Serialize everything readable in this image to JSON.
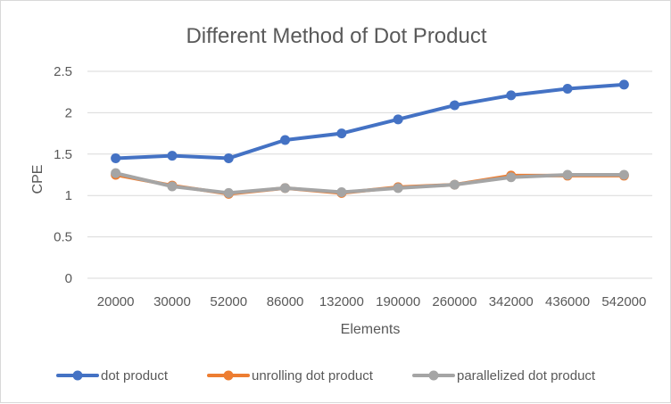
{
  "chart_data": {
    "type": "line",
    "title": "Different Method of Dot Product",
    "xlabel": "Elements",
    "ylabel": "CPE",
    "categories": [
      "20000",
      "30000",
      "52000",
      "86000",
      "132000",
      "190000",
      "260000",
      "342000",
      "436000",
      "542000"
    ],
    "ylim": [
      0,
      2.5
    ],
    "yticks": [
      "0",
      "0.5",
      "1",
      "1.5",
      "2",
      "2.5"
    ],
    "grid": true,
    "legend_position": "bottom",
    "series": [
      {
        "name": "dot product",
        "color": "#4472c4",
        "values": [
          1.45,
          1.48,
          1.45,
          1.67,
          1.75,
          1.92,
          2.09,
          2.21,
          2.29,
          2.34
        ]
      },
      {
        "name": "unrolling dot product",
        "color": "#ed7d31",
        "values": [
          1.25,
          1.12,
          1.02,
          1.09,
          1.03,
          1.1,
          1.13,
          1.24,
          1.24,
          1.24
        ]
      },
      {
        "name": "parallelized dot product",
        "color": "#a5a5a5",
        "values": [
          1.27,
          1.11,
          1.03,
          1.09,
          1.04,
          1.09,
          1.13,
          1.22,
          1.25,
          1.25
        ]
      }
    ]
  }
}
